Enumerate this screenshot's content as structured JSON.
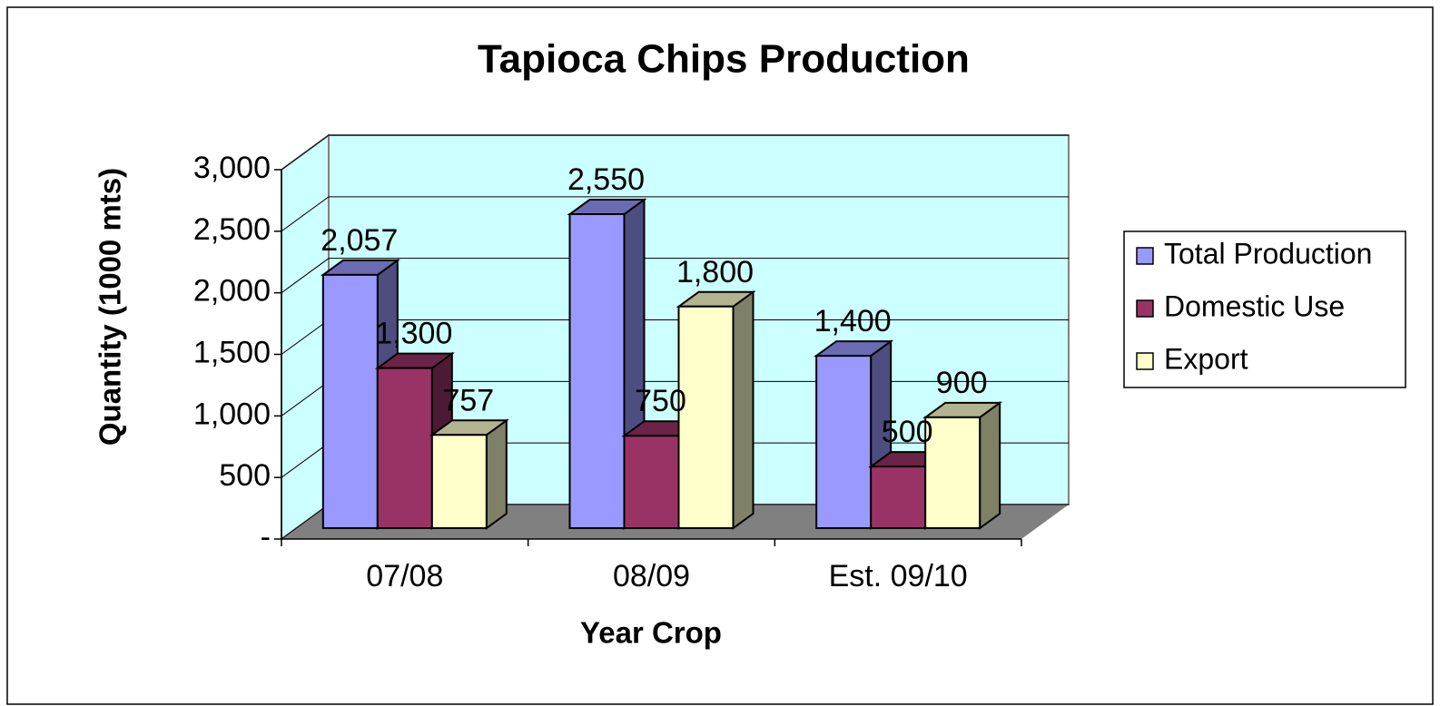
{
  "chart_data": {
    "type": "bar3d",
    "title": "Tapioca Chips Production",
    "x_label": "Year Crop",
    "y_label": "Quantity (1000 mts)",
    "categories": [
      "07/08",
      "08/09",
      "Est. 09/10"
    ],
    "series": [
      {
        "name": "Total Production",
        "color": "#9999ff",
        "values": [
          2057,
          2550,
          1400
        ],
        "value_labels": [
          "2,057",
          "2,550",
          "1,400"
        ]
      },
      {
        "name": "Domestic Use",
        "color": "#993366",
        "values": [
          1300,
          750,
          500
        ],
        "value_labels": [
          "1,300",
          "750",
          "500"
        ]
      },
      {
        "name": "Export",
        "color": "#ffffcc",
        "values": [
          757,
          1800,
          900
        ],
        "value_labels": [
          "757",
          "1,800",
          "900"
        ]
      }
    ],
    "ylim": [
      0,
      3000
    ],
    "yticks": [
      {
        "value": 0,
        "label": "-"
      },
      500,
      {
        "value": 1000,
        "label": "1,000"
      },
      {
        "value": 1500,
        "label": "1,500"
      },
      {
        "value": 2000,
        "label": "2,000"
      },
      {
        "value": 2500,
        "label": "2,500"
      },
      {
        "value": 3000,
        "label": "3,000"
      }
    ],
    "grid": true,
    "legend": "right",
    "wall_color": "#ccffff",
    "floor_color": "#808080"
  }
}
